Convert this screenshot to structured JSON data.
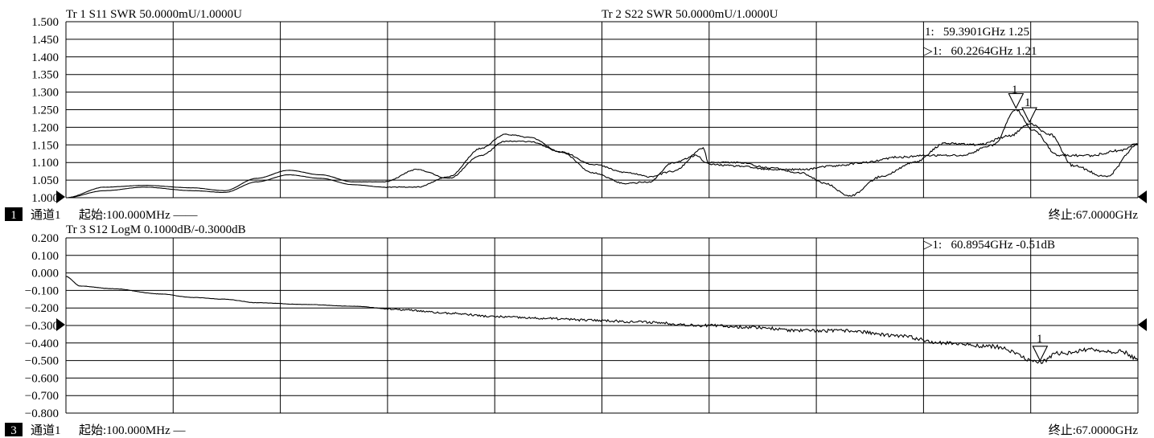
{
  "colors": {
    "trace": "#000000",
    "grid": "#000000",
    "background": "#ffffff"
  },
  "top_panel": {
    "header_tr1": "Tr 1  S11 SWR 50.0000mU/1.0000U",
    "header_tr2": "Tr 2  S22 SWR 50.0000mU/1.0000U",
    "marker_line_1": "1:   59.3901GHz 1.25",
    "marker_line_2": "▷1:   60.2264GHz 1.21",
    "marker_flag_1": "1",
    "marker_flag_2": "1",
    "footer_badge": "1",
    "footer_channel": "通道1",
    "footer_start": "起始:100.000MHz ——",
    "footer_stop": "终止:67.0000GHz"
  },
  "bottom_panel": {
    "header_tr3": "Tr 3  S12 LogM 0.1000dB/-0.3000dB",
    "marker_line_1": "▷1:   60.8954GHz -0.51dB",
    "marker_flag_1": "1",
    "footer_badge": "3",
    "footer_channel": "通道1",
    "footer_start": "起始:100.000MHz —",
    "footer_stop": "终止:67.0000GHz"
  },
  "chart_data": [
    {
      "type": "line",
      "x_unit": "GHz",
      "xlim": [
        0.1,
        67.0
      ],
      "ylim": [
        1.0,
        1.5
      ],
      "y_ticks": [
        "1.500",
        "1.450",
        "1.400",
        "1.350",
        "1.300",
        "1.250",
        "1.200",
        "1.150",
        "1.100",
        "1.050",
        "1.000"
      ],
      "grid": true,
      "series": [
        {
          "name": "Tr 1",
          "x": [
            0.1,
            2.5,
            5,
            8,
            10,
            12,
            14,
            16,
            18,
            20,
            22,
            24,
            26,
            27.5,
            29,
            31,
            33,
            35,
            36.5,
            38,
            39.9,
            40.2,
            42,
            44,
            46,
            48,
            50,
            52,
            54,
            56,
            58,
            59.39,
            60.5,
            62,
            64,
            66,
            67
          ],
          "y": [
            1.0,
            1.03,
            1.035,
            1.028,
            1.02,
            1.055,
            1.078,
            1.065,
            1.045,
            1.045,
            1.08,
            1.055,
            1.12,
            1.16,
            1.16,
            1.13,
            1.095,
            1.072,
            1.06,
            1.075,
            1.14,
            1.095,
            1.09,
            1.08,
            1.08,
            1.09,
            1.1,
            1.115,
            1.12,
            1.12,
            1.15,
            1.25,
            1.19,
            1.12,
            1.12,
            1.135,
            1.155
          ]
        },
        {
          "name": "Tr 2",
          "x": [
            0.1,
            2.5,
            5,
            8,
            10,
            12,
            14,
            16,
            18,
            20,
            22,
            24,
            26,
            27.5,
            29,
            31,
            33,
            35,
            36.5,
            38,
            39.5,
            40,
            42,
            44,
            46,
            47.5,
            49,
            51,
            53,
            55,
            57,
            59,
            60.23,
            61.5,
            63,
            65,
            67
          ],
          "y": [
            1.0,
            1.02,
            1.03,
            1.02,
            1.015,
            1.045,
            1.065,
            1.055,
            1.037,
            1.03,
            1.03,
            1.06,
            1.14,
            1.18,
            1.172,
            1.13,
            1.07,
            1.04,
            1.045,
            1.1,
            1.12,
            1.1,
            1.1,
            1.085,
            1.07,
            1.04,
            1.005,
            1.06,
            1.1,
            1.155,
            1.15,
            1.175,
            1.21,
            1.18,
            1.09,
            1.06,
            1.15
          ]
        }
      ],
      "markers": [
        {
          "label": "1",
          "x": 59.3901,
          "y": 1.25
        },
        {
          "label": "1",
          "x": 60.2264,
          "y": 1.21
        }
      ]
    },
    {
      "type": "line",
      "x_unit": "GHz",
      "xlim": [
        0.1,
        67.0
      ],
      "ylim": [
        -0.8,
        0.2
      ],
      "y_ticks": [
        "0.200",
        "0.100",
        "0.000",
        "−0.100",
        "−0.200",
        "−0.300",
        "−0.400",
        "−0.500",
        "−0.600",
        "−0.700",
        "−0.800"
      ],
      "grid": true,
      "series": [
        {
          "name": "Tr 3",
          "x": [
            0.1,
            1,
            3,
            6,
            8,
            10,
            12,
            15,
            18,
            21,
            24,
            27,
            30,
            33,
            36,
            40,
            43,
            46,
            49,
            52,
            55,
            58,
            60.9,
            62,
            64,
            66,
            67
          ],
          "y": [
            -0.02,
            -0.075,
            -0.09,
            -0.12,
            -0.14,
            -0.15,
            -0.17,
            -0.18,
            -0.19,
            -0.21,
            -0.23,
            -0.25,
            -0.26,
            -0.27,
            -0.28,
            -0.3,
            -0.31,
            -0.33,
            -0.33,
            -0.36,
            -0.4,
            -0.42,
            -0.51,
            -0.46,
            -0.44,
            -0.45,
            -0.49
          ]
        }
      ],
      "markers": [
        {
          "label": "1",
          "x": 60.8954,
          "y": -0.51
        }
      ]
    }
  ]
}
